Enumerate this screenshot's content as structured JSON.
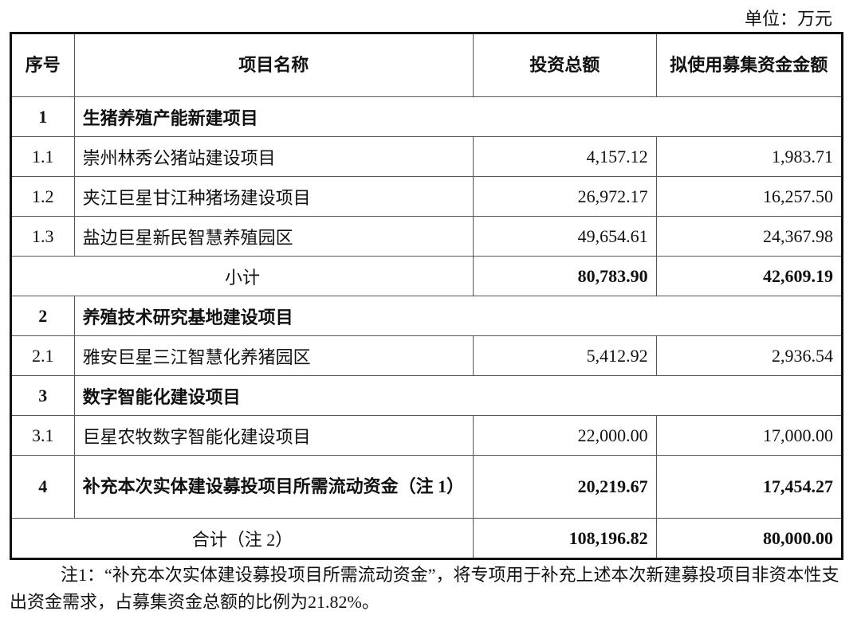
{
  "unit_label": "单位：万元",
  "headers": {
    "seq": "序号",
    "name": "项目名称",
    "total": "投资总额",
    "raised": "拟使用募集资金金额"
  },
  "sections": [
    {
      "seq": "1",
      "name": "生猪养殖产能新建项目",
      "items": [
        {
          "seq": "1.1",
          "name": "崇州林秀公猪站建设项目",
          "total": "4,157.12",
          "raised": "1,983.71"
        },
        {
          "seq": "1.2",
          "name": "夹江巨星甘江种猪场建设项目",
          "total": "26,972.17",
          "raised": "16,257.50"
        },
        {
          "seq": "1.3",
          "name": "盐边巨星新民智慧养殖园区",
          "total": "49,654.61",
          "raised": "24,367.98"
        }
      ],
      "subtotal": {
        "label": "小计",
        "total": "80,783.90",
        "raised": "42,609.19"
      }
    },
    {
      "seq": "2",
      "name": "养殖技术研究基地建设项目",
      "items": [
        {
          "seq": "2.1",
          "name": "雅安巨星三江智慧化养猪园区",
          "total": "5,412.92",
          "raised": "2,936.54"
        }
      ]
    },
    {
      "seq": "3",
      "name": "数字智能化建设项目",
      "items": [
        {
          "seq": "3.1",
          "name": "巨星农牧数字智能化建设项目",
          "total": "22,000.00",
          "raised": "17,000.00"
        }
      ]
    },
    {
      "seq": "4",
      "name": "补充本次实体建设募投项目所需流动资金（注 1）",
      "total": "20,219.67",
      "raised": "17,454.27"
    }
  ],
  "grand_total": {
    "label": "合计（注 2）",
    "total": "108,196.82",
    "raised": "80,000.00"
  },
  "note": "注1：“补充本次实体建设募投项目所需流动资金”，将专项用于补充上述本次新建募投项目非资本性支出资金需求，占募集资金总额的比例为21.82%。"
}
